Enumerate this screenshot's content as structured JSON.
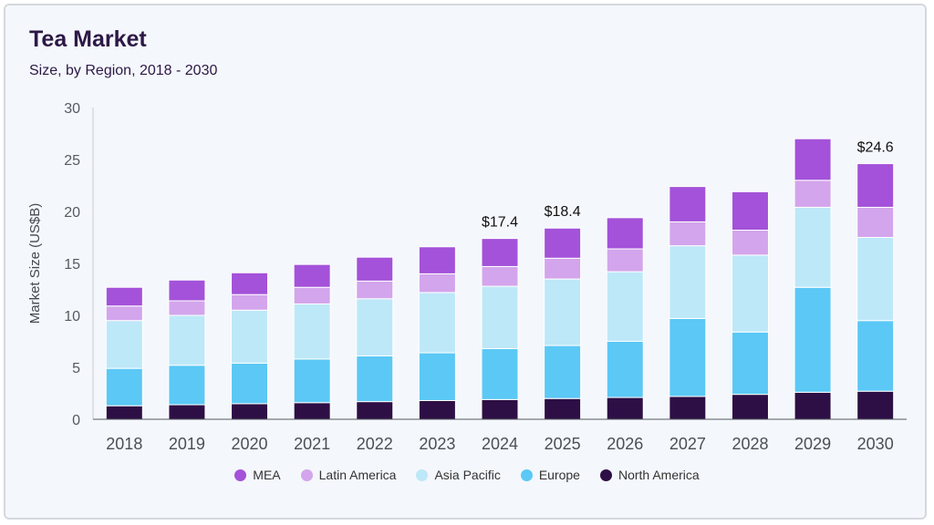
{
  "header": {
    "title": "Tea Market",
    "subtitle": "Size, by Region, 2018 - 2030"
  },
  "chart_data": {
    "type": "bar",
    "stacked": true,
    "title": "Tea Market",
    "subtitle": "Size, by Region, 2018 - 2030",
    "xlabel": "",
    "ylabel": "Market Size (US$B)",
    "ylim": [
      0,
      30
    ],
    "yticks": [
      0,
      5,
      10,
      15,
      20,
      25,
      30
    ],
    "grid": false,
    "legend_position": "bottom",
    "categories": [
      "2018",
      "2019",
      "2020",
      "2021",
      "2022",
      "2023",
      "2024",
      "2025",
      "2026",
      "2027",
      "2028",
      "2029",
      "2030"
    ],
    "series": [
      {
        "name": "North America",
        "color": "#2d0f45",
        "values": [
          1.3,
          1.4,
          1.5,
          1.6,
          1.7,
          1.8,
          1.9,
          2.0,
          2.1,
          2.2,
          2.4,
          2.6,
          2.7
        ]
      },
      {
        "name": "Europe",
        "color": "#5bc8f5",
        "values": [
          3.6,
          3.8,
          3.9,
          4.2,
          4.4,
          4.6,
          4.9,
          5.1,
          5.4,
          7.5,
          6.0,
          10.1,
          6.8
        ]
      },
      {
        "name": "Asia Pacific",
        "color": "#bde8f8",
        "values": [
          4.6,
          4.8,
          5.1,
          5.3,
          5.5,
          5.8,
          6.0,
          6.4,
          6.7,
          7.0,
          7.4,
          7.7,
          8.0
        ]
      },
      {
        "name": "Latin America",
        "color": "#d3a5ec",
        "values": [
          1.4,
          1.4,
          1.5,
          1.6,
          1.7,
          1.8,
          1.9,
          2.0,
          2.2,
          2.3,
          2.4,
          2.6,
          2.9
        ]
      },
      {
        "name": "MEA",
        "color": "#a352d9",
        "values": [
          1.8,
          2.0,
          2.1,
          2.2,
          2.3,
          2.6,
          2.7,
          2.9,
          3.0,
          3.4,
          3.7,
          4.0,
          4.2
        ]
      }
    ],
    "annotations": [
      {
        "category": "2024",
        "text": "$17.4"
      },
      {
        "category": "2025",
        "text": "$18.4"
      },
      {
        "category": "2030",
        "text": "$24.6"
      }
    ]
  }
}
